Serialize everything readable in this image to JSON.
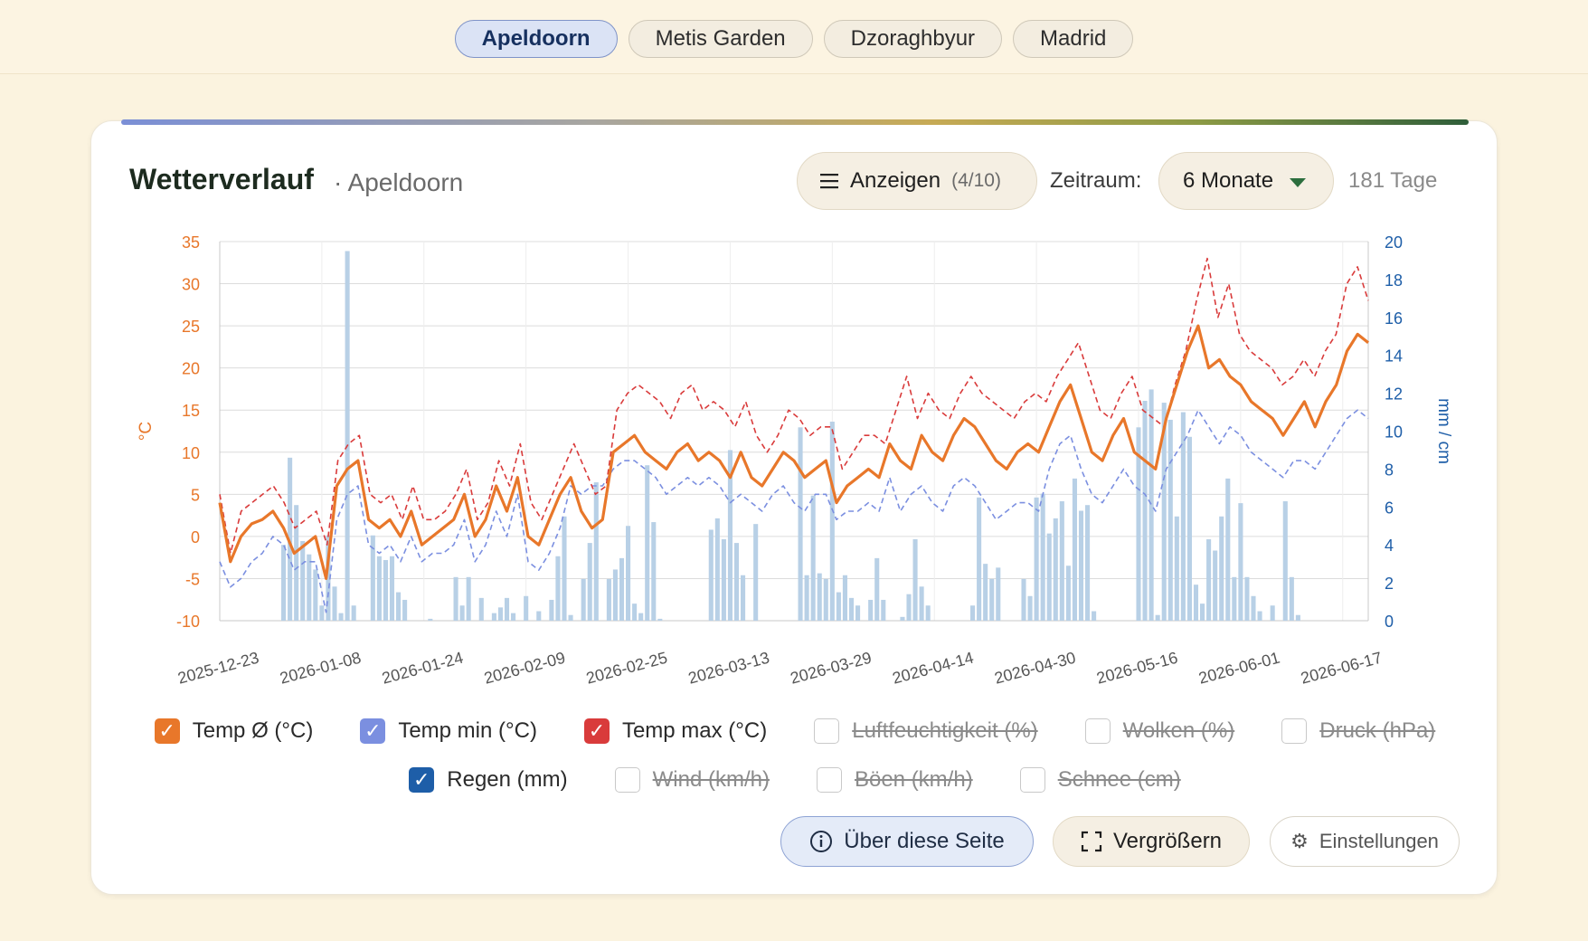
{
  "city_tabs": [
    {
      "label": "Apeldoorn",
      "active": true
    },
    {
      "label": "Metis Garden",
      "active": false
    },
    {
      "label": "Dzoraghbyur",
      "active": false
    },
    {
      "label": "Madrid",
      "active": false
    }
  ],
  "header": {
    "title": "Wetterverlauf",
    "subtitle": "· Apeldoorn",
    "show_button_label": "Anzeigen",
    "show_button_count": "(4/10)",
    "period_label": "Zeitraum:",
    "period_value": "6 Monate",
    "days_label": "181 Tage"
  },
  "legend": [
    {
      "label": "Temp Ø (°C)",
      "checked": true,
      "color": "#e8772a"
    },
    {
      "label": "Temp min (°C)",
      "checked": true,
      "color": "#7b8fe0"
    },
    {
      "label": "Temp max (°C)",
      "checked": true,
      "color": "#d93b3b"
    },
    {
      "label": "Luftfeuchtigkeit (%)",
      "checked": false,
      "color": "#ffffff"
    },
    {
      "label": "Wolken (%)",
      "checked": false,
      "color": "#ffffff"
    },
    {
      "label": "Druck (hPa)",
      "checked": false,
      "color": "#ffffff"
    },
    {
      "label": "Regen (mm)",
      "checked": true,
      "color": "#1e5ea8"
    },
    {
      "label": "Wind (km/h)",
      "checked": false,
      "color": "#ffffff"
    },
    {
      "label": "Böen (km/h)",
      "checked": false,
      "color": "#ffffff"
    },
    {
      "label": "Schnee (cm)",
      "checked": false,
      "color": "#ffffff"
    }
  ],
  "buttons": {
    "about": "Über diese Seite",
    "enlarge": "Vergrößern",
    "settings": "Einstellungen"
  },
  "icons": {
    "menu": "menu-icon",
    "caret": "chevron-down-icon",
    "info": "info-icon",
    "expand": "expand-icon",
    "settings": "gear-icon"
  },
  "chart_data": {
    "type": "line",
    "left_axis": {
      "label": "°C",
      "ticks": [
        35,
        30,
        25,
        20,
        15,
        10,
        5,
        0,
        -5,
        -10
      ],
      "range": [
        -10,
        35
      ],
      "color": "#e8772a"
    },
    "right_axis": {
      "label": "mm / cm",
      "ticks": [
        20,
        18,
        16,
        14,
        12,
        10,
        8,
        6,
        4,
        2,
        0
      ],
      "range": [
        0,
        20
      ],
      "color": "#1e5ea8"
    },
    "x_ticks": [
      "2025-12-23",
      "2026-01-08",
      "2026-01-24",
      "2026-02-09",
      "2026-02-25",
      "2026-03-13",
      "2026-03-29",
      "2026-04-14",
      "2026-04-30",
      "2026-05-16",
      "2026-06-01",
      "2026-06-17"
    ],
    "grid": true,
    "series": [
      {
        "name": "Temp Ø (°C)",
        "axis": "left",
        "style": "solid",
        "color": "#e8772a",
        "values": [
          4,
          -3,
          0,
          1.5,
          2,
          3,
          1,
          -2,
          -1,
          0,
          -5,
          6,
          8,
          9,
          2,
          1,
          2,
          0,
          3,
          -1,
          0,
          1,
          2,
          5,
          0,
          2,
          6,
          3,
          7,
          0,
          -1,
          2,
          5,
          7,
          3,
          1,
          2,
          10,
          11,
          12,
          10,
          9,
          8,
          10,
          11,
          9,
          10,
          9,
          7,
          10,
          7,
          6,
          8,
          10,
          9,
          7,
          8,
          9,
          4,
          6,
          7,
          8,
          7,
          11,
          9,
          8,
          12,
          10,
          9,
          12,
          14,
          13,
          11,
          9,
          8,
          10,
          11,
          10,
          13,
          16,
          18,
          14,
          10,
          9,
          12,
          14,
          10,
          9,
          8,
          14,
          18,
          22,
          25,
          20,
          21,
          19,
          18,
          16,
          15,
          14,
          12,
          14,
          16,
          13,
          16,
          18,
          22,
          24,
          23
        ]
      },
      {
        "name": "Temp min (°C)",
        "axis": "left",
        "style": "dashed",
        "color": "#7b8fe0",
        "values": [
          -3,
          -6,
          -5,
          -3,
          -2,
          0,
          -1,
          -4,
          -3,
          -3,
          -9,
          2,
          5,
          6,
          -1,
          -2,
          -1,
          -3,
          0,
          -3,
          -2,
          -2,
          -1,
          2,
          -3,
          -1,
          3,
          0,
          5,
          -3,
          -4,
          -2,
          1,
          6,
          5,
          6,
          6,
          8,
          9,
          9,
          8,
          7,
          5,
          6,
          7,
          6,
          7,
          6,
          4,
          5,
          4,
          3,
          5,
          6,
          4,
          3,
          5,
          5,
          2,
          3,
          3,
          4,
          3,
          7,
          3,
          5,
          6,
          4,
          3,
          6,
          7,
          6,
          4,
          2,
          3,
          4,
          4,
          3,
          8,
          11,
          12,
          8,
          5,
          4,
          6,
          8,
          6,
          5,
          3,
          8,
          10,
          12,
          15,
          13,
          11,
          13,
          12,
          10,
          9,
          8,
          7,
          9,
          9,
          8,
          10,
          12,
          14,
          15,
          14
        ]
      },
      {
        "name": "Temp max (°C)",
        "axis": "left",
        "style": "dashed",
        "color": "#d93b3b",
        "values": [
          5,
          -2,
          3,
          4,
          5,
          6,
          4,
          1,
          2,
          3,
          -1,
          9,
          11,
          12,
          5,
          4,
          5,
          2,
          6,
          2,
          2,
          3,
          5,
          8,
          2,
          4,
          9,
          6,
          11,
          4,
          2,
          5,
          8,
          11,
          8,
          5,
          6,
          15,
          17,
          18,
          17,
          16,
          14,
          17,
          18,
          15,
          16,
          15,
          13,
          16,
          12,
          10,
          12,
          15,
          14,
          12,
          13,
          13,
          8,
          10,
          12,
          12,
          11,
          15,
          19,
          14,
          17,
          15,
          14,
          17,
          19,
          17,
          16,
          15,
          14,
          16,
          17,
          16,
          19,
          21,
          23,
          19,
          15,
          14,
          17,
          19,
          15,
          14,
          13,
          18,
          22,
          28,
          33,
          26,
          30,
          24,
          22,
          21,
          20,
          18,
          19,
          21,
          19,
          22,
          24,
          30,
          32,
          28
        ]
      },
      {
        "name": "Regen (mm)",
        "axis": "right",
        "style": "bar",
        "color": "#b8d0e6",
        "values": [
          0,
          0,
          0,
          0,
          0,
          0,
          0,
          0,
          0,
          0,
          0,
          0,
          0,
          0,
          0,
          0,
          0,
          0,
          0,
          0,
          0,
          0,
          0,
          0,
          0,
          0,
          0,
          0,
          0,
          0,
          0,
          0,
          0,
          0,
          0,
          0,
          0,
          0,
          0,
          0,
          0,
          0,
          0,
          0,
          0,
          0,
          0,
          0,
          0,
          0,
          0,
          0,
          0,
          0,
          0,
          0,
          0,
          0,
          0,
          0,
          0,
          0,
          0,
          0,
          0,
          0,
          0,
          0,
          0,
          0,
          0,
          0,
          0,
          0,
          0,
          0,
          0,
          0,
          0,
          0,
          0,
          0,
          0,
          0,
          0,
          0,
          0,
          0,
          0,
          0,
          0,
          0,
          0,
          0,
          0,
          0,
          0,
          0,
          0,
          0,
          0,
          0,
          0,
          0,
          0,
          0,
          0,
          0
        ],
        "bars": [
          [
            10,
            4
          ],
          [
            11,
            8.6
          ],
          [
            12,
            6.1
          ],
          [
            13,
            4.2
          ],
          [
            14,
            3.5
          ],
          [
            15,
            2.7
          ],
          [
            16,
            0.8
          ],
          [
            17,
            4.5
          ],
          [
            18,
            1.8
          ],
          [
            19,
            0.4
          ],
          [
            20,
            19.5
          ],
          [
            21,
            0.8
          ],
          [
            24,
            4.5
          ],
          [
            25,
            3.4
          ],
          [
            26,
            3.2
          ],
          [
            27,
            3.4
          ],
          [
            28,
            1.5
          ],
          [
            29,
            1.1
          ],
          [
            33,
            0.1
          ],
          [
            37,
            2.3
          ],
          [
            38,
            0.8
          ],
          [
            39,
            2.3
          ],
          [
            41,
            1.2
          ],
          [
            43,
            0.4
          ],
          [
            44,
            0.7
          ],
          [
            45,
            1.2
          ],
          [
            46,
            0.4
          ],
          [
            48,
            1.3
          ],
          [
            50,
            0.5
          ],
          [
            52,
            1.1
          ],
          [
            53,
            3.4
          ],
          [
            54,
            5.5
          ],
          [
            55,
            0.3
          ],
          [
            57,
            2.2
          ],
          [
            58,
            4.1
          ],
          [
            59,
            7.3
          ],
          [
            61,
            2.2
          ],
          [
            62,
            2.7
          ],
          [
            63,
            3.3
          ],
          [
            64,
            5
          ],
          [
            65,
            0.9
          ],
          [
            66,
            0.4
          ],
          [
            67,
            8.2
          ],
          [
            68,
            5.2
          ],
          [
            69,
            0.1
          ],
          [
            77,
            4.8
          ],
          [
            78,
            5.4
          ],
          [
            79,
            4.3
          ],
          [
            80,
            9
          ],
          [
            81,
            4.1
          ],
          [
            82,
            2.4
          ],
          [
            84,
            5.1
          ],
          [
            91,
            10.2
          ],
          [
            92,
            2.4
          ],
          [
            93,
            6.6
          ],
          [
            94,
            2.5
          ],
          [
            95,
            2.2
          ],
          [
            96,
            10.5
          ],
          [
            97,
            1.5
          ],
          [
            98,
            2.4
          ],
          [
            99,
            1.2
          ],
          [
            100,
            0.8
          ],
          [
            102,
            1.1
          ],
          [
            103,
            3.3
          ],
          [
            104,
            1.1
          ],
          [
            107,
            0.2
          ],
          [
            108,
            1.4
          ],
          [
            109,
            4.3
          ],
          [
            110,
            1.8
          ],
          [
            111,
            0.8
          ],
          [
            118,
            0.8
          ],
          [
            119,
            6.5
          ],
          [
            120,
            3
          ],
          [
            121,
            2.2
          ],
          [
            122,
            2.8
          ],
          [
            126,
            2.2
          ],
          [
            127,
            1.3
          ],
          [
            128,
            6.5
          ],
          [
            129,
            6.7
          ],
          [
            130,
            4.6
          ],
          [
            131,
            5.4
          ],
          [
            132,
            6.3
          ],
          [
            133,
            2.9
          ],
          [
            134,
            7.5
          ],
          [
            135,
            5.8
          ],
          [
            136,
            6.1
          ],
          [
            137,
            0.5
          ],
          [
            144,
            10.2
          ],
          [
            145,
            11.6
          ],
          [
            146,
            12.2
          ],
          [
            147,
            0.3
          ],
          [
            148,
            11.5
          ],
          [
            149,
            10.6
          ],
          [
            150,
            5.5
          ],
          [
            151,
            11
          ],
          [
            152,
            9.7
          ],
          [
            153,
            1.9
          ],
          [
            154,
            0.9
          ],
          [
            155,
            4.3
          ],
          [
            156,
            3.7
          ],
          [
            157,
            5.5
          ],
          [
            158,
            7.5
          ],
          [
            159,
            2.3
          ],
          [
            160,
            6.2
          ],
          [
            161,
            2.3
          ],
          [
            162,
            1.3
          ],
          [
            163,
            0.5
          ],
          [
            165,
            0.8
          ],
          [
            167,
            6.3
          ],
          [
            168,
            2.3
          ],
          [
            169,
            0.3
          ]
        ]
      }
    ]
  }
}
